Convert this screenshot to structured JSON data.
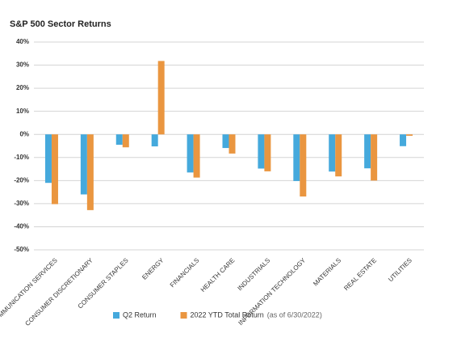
{
  "chart_data": {
    "type": "bar",
    "title": "S&P 500 Sector Returns",
    "categories": [
      "COMMUNICATION SERVICES",
      "CONSUMER DISCRETIONARY",
      "CONSUMER STAPLES",
      "ENERGY",
      "FINANCIALS",
      "HEALTH CARE",
      "INDUSTRIALS",
      "INFORMATION TECHNOLOGY",
      "MATERIALS",
      "REAL ESTATE",
      "UTILITIES"
    ],
    "series": [
      {
        "name": "Q2 Return",
        "color": "#45a9dc",
        "values": [
          -21,
          -26,
          -4.5,
          -5.2,
          -16.5,
          -5.9,
          -14.8,
          -20.2,
          -16.1,
          -14.7,
          -5.1
        ]
      },
      {
        "name": "2022 YTD Total Return",
        "color": "#ea9640",
        "values": [
          -30.2,
          -32.8,
          -5.6,
          31.8,
          -18.7,
          -8.3,
          -16,
          -26.9,
          -18.2,
          -20,
          -0.6
        ]
      }
    ],
    "legend_note": "(as of 6/30/2022)",
    "ylim": [
      -50,
      40
    ],
    "yticks": [
      {
        "value": -50,
        "label": "-50%"
      },
      {
        "value": -40,
        "label": "-40%"
      },
      {
        "value": -30,
        "label": "-30%"
      },
      {
        "value": -20,
        "label": "-20%"
      },
      {
        "value": -10,
        "label": "-10%"
      },
      {
        "value": 0,
        "label": "0%"
      },
      {
        "value": 10,
        "label": "10%"
      },
      {
        "value": 20,
        "label": "20%"
      },
      {
        "value": 30,
        "label": "30%"
      },
      {
        "value": 40,
        "label": "40%"
      }
    ],
    "grid": true
  }
}
